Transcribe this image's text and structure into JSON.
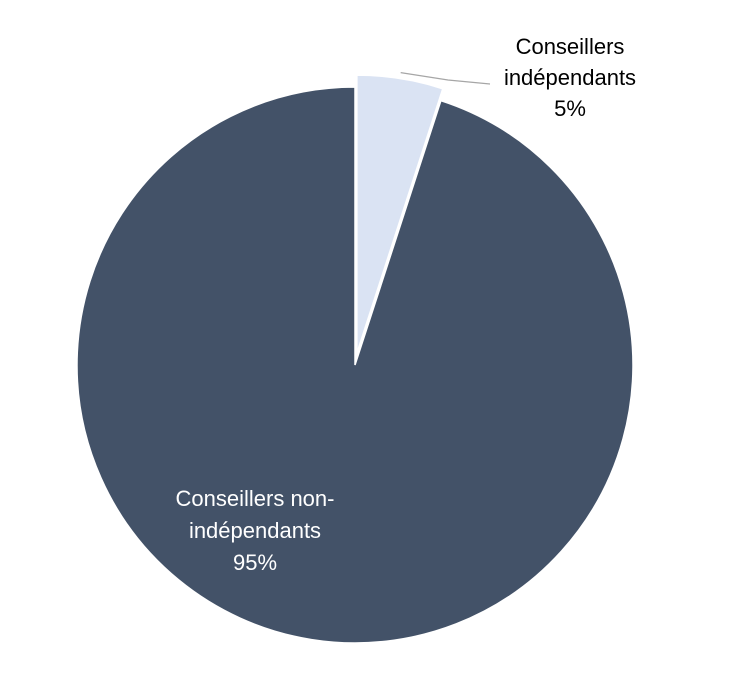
{
  "chart_data": {
    "type": "pie",
    "title": "",
    "slices": [
      {
        "label_line1": "Conseillers",
        "label_line2": "indépendants",
        "percent_label": "5%",
        "value": 5,
        "color": "#DAE3F3"
      },
      {
        "label_line1": "Conseillers non-",
        "label_line2": "indépendants",
        "percent_label": "95%",
        "value": 95,
        "color": "#435268"
      }
    ],
    "label_colors": {
      "outside": "#000000",
      "inside": "#ffffff"
    },
    "leader_line_color": "#A6A6A6"
  }
}
